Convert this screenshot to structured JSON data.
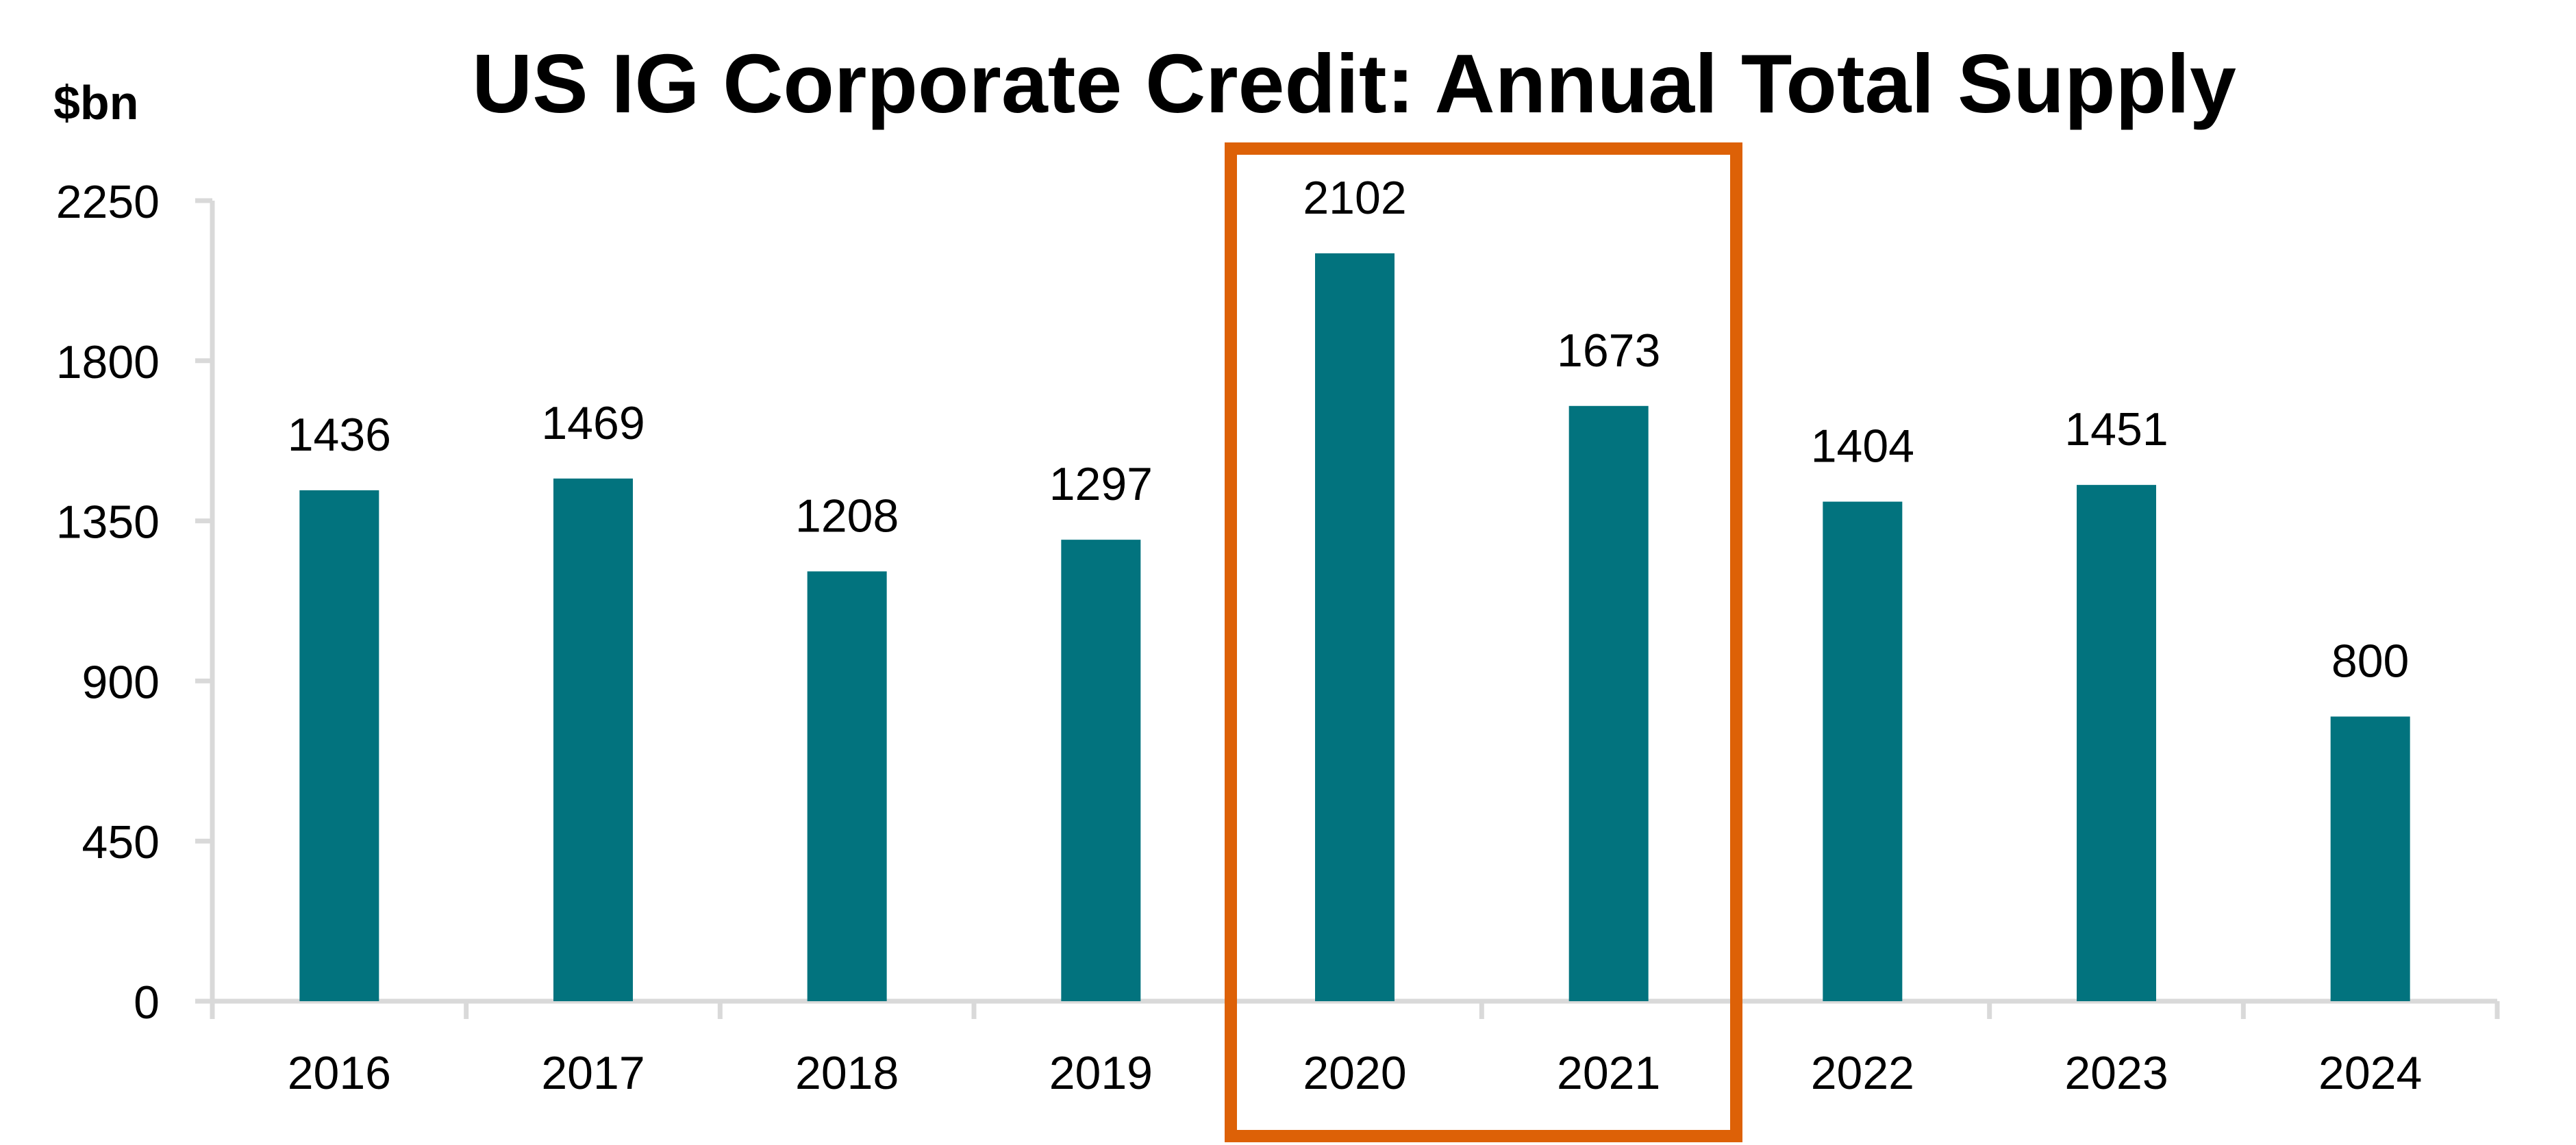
{
  "chart_data": {
    "type": "bar",
    "title": "US IG Corporate Credit: Annual Total Supply",
    "ylabel": "$bn",
    "xlabel": "",
    "categories": [
      "2016",
      "2017",
      "2018",
      "2019",
      "2020",
      "2021",
      "2022",
      "2023",
      "2024"
    ],
    "values": [
      1436,
      1469,
      1208,
      1297,
      2102,
      1673,
      1404,
      1451,
      800
    ],
    "data_labels": [
      "1436",
      "1469",
      "1208",
      "1297",
      "2102",
      "1673",
      "1404",
      "1451",
      "800"
    ],
    "ylim": [
      0,
      2250
    ],
    "yticks": [
      0,
      450,
      900,
      1350,
      1800,
      2250
    ],
    "ytick_labels": [
      "0",
      "450",
      "900",
      "1350",
      "1800",
      "2250"
    ],
    "grid": false,
    "legend": "none",
    "bar_color": "#02737E",
    "highlight": {
      "categories": [
        "2020",
        "2021"
      ],
      "style": "outlined box",
      "color": "#DD6107"
    }
  }
}
